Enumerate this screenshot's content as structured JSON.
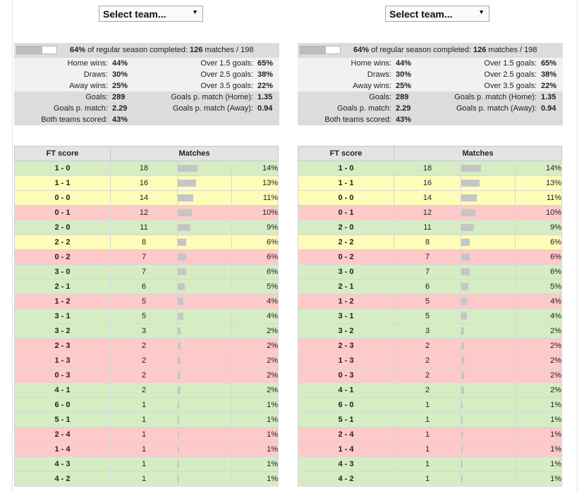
{
  "panels": [
    {
      "select_label": "Select team...",
      "summary": {
        "progress_percent": 64,
        "progress_pct_text": "64%",
        "progress_mid": " of regular season completed: ",
        "matches_played": "126",
        "matches_suffix": " matches / 198",
        "rows": [
          {
            "l_label": "Home wins:",
            "l_val": "44%",
            "r_label": "Over 1.5 goals:",
            "r_val": "65%"
          },
          {
            "l_label": "Draws:",
            "l_val": "30%",
            "r_label": "Over 2.5 goals:",
            "r_val": "38%"
          },
          {
            "l_label": "Away wins:",
            "l_val": "25%",
            "r_label": "Over 3.5 goals:",
            "r_val": "22%"
          },
          {
            "l_label": "Goals:",
            "l_val": "289",
            "r_label": "Goals p. match (Home):",
            "r_val": "1.35"
          },
          {
            "l_label": "Goals p. match:",
            "l_val": "2.29",
            "r_label": "Goals p. match (Away):",
            "r_val": "0.94"
          },
          {
            "l_label": "Both teams scored:",
            "l_val": "43%",
            "r_label": "",
            "r_val": ""
          }
        ]
      },
      "table": {
        "header_score": "FT score",
        "header_matches": "Matches",
        "rows": [
          {
            "score": "1 - 0",
            "count": "18",
            "pct": "14%",
            "share": 14,
            "result": "win"
          },
          {
            "score": "1 - 1",
            "count": "16",
            "pct": "13%",
            "share": 13,
            "result": "draw"
          },
          {
            "score": "0 - 0",
            "count": "14",
            "pct": "11%",
            "share": 11,
            "result": "draw"
          },
          {
            "score": "0 - 1",
            "count": "12",
            "pct": "10%",
            "share": 10,
            "result": "loss"
          },
          {
            "score": "2 - 0",
            "count": "11",
            "pct": "9%",
            "share": 9,
            "result": "win"
          },
          {
            "score": "2 - 2",
            "count": "8",
            "pct": "6%",
            "share": 6,
            "result": "draw"
          },
          {
            "score": "0 - 2",
            "count": "7",
            "pct": "6%",
            "share": 6,
            "result": "loss"
          },
          {
            "score": "3 - 0",
            "count": "7",
            "pct": "6%",
            "share": 6,
            "result": "win"
          },
          {
            "score": "2 - 1",
            "count": "6",
            "pct": "5%",
            "share": 5,
            "result": "win"
          },
          {
            "score": "1 - 2",
            "count": "5",
            "pct": "4%",
            "share": 4,
            "result": "loss"
          },
          {
            "score": "3 - 1",
            "count": "5",
            "pct": "4%",
            "share": 4,
            "result": "win"
          },
          {
            "score": "3 - 2",
            "count": "3",
            "pct": "2%",
            "share": 2,
            "result": "win"
          },
          {
            "score": "2 - 3",
            "count": "2",
            "pct": "2%",
            "share": 2,
            "result": "loss"
          },
          {
            "score": "1 - 3",
            "count": "2",
            "pct": "2%",
            "share": 2,
            "result": "loss"
          },
          {
            "score": "0 - 3",
            "count": "2",
            "pct": "2%",
            "share": 2,
            "result": "loss"
          },
          {
            "score": "4 - 1",
            "count": "2",
            "pct": "2%",
            "share": 2,
            "result": "win"
          },
          {
            "score": "6 - 0",
            "count": "1",
            "pct": "1%",
            "share": 1,
            "result": "win"
          },
          {
            "score": "5 - 1",
            "count": "1",
            "pct": "1%",
            "share": 1,
            "result": "win"
          },
          {
            "score": "2 - 4",
            "count": "1",
            "pct": "1%",
            "share": 1,
            "result": "loss"
          },
          {
            "score": "1 - 4",
            "count": "1",
            "pct": "1%",
            "share": 1,
            "result": "loss"
          },
          {
            "score": "4 - 3",
            "count": "1",
            "pct": "1%",
            "share": 1,
            "result": "win"
          },
          {
            "score": "4 - 2",
            "count": "1",
            "pct": "1%",
            "share": 1,
            "result": "win"
          }
        ]
      }
    },
    {
      "select_label": "Select team...",
      "summary": {
        "progress_percent": 64,
        "progress_pct_text": "64%",
        "progress_mid": " of regular season completed: ",
        "matches_played": "126",
        "matches_suffix": " matches / 198",
        "rows": [
          {
            "l_label": "Home wins:",
            "l_val": "44%",
            "r_label": "Over 1.5 goals:",
            "r_val": "65%"
          },
          {
            "l_label": "Draws:",
            "l_val": "30%",
            "r_label": "Over 2.5 goals:",
            "r_val": "38%"
          },
          {
            "l_label": "Away wins:",
            "l_val": "25%",
            "r_label": "Over 3.5 goals:",
            "r_val": "22%"
          },
          {
            "l_label": "Goals:",
            "l_val": "289",
            "r_label": "Goals p. match (Home):",
            "r_val": "1.35"
          },
          {
            "l_label": "Goals p. match:",
            "l_val": "2.29",
            "r_label": "Goals p. match (Away):",
            "r_val": "0.94"
          },
          {
            "l_label": "Both teams scored:",
            "l_val": "43%",
            "r_label": "",
            "r_val": ""
          }
        ]
      },
      "table": {
        "header_score": "FT score",
        "header_matches": "Matches",
        "rows": [
          {
            "score": "1 - 0",
            "count": "18",
            "pct": "14%",
            "share": 14,
            "result": "win"
          },
          {
            "score": "1 - 1",
            "count": "16",
            "pct": "13%",
            "share": 13,
            "result": "draw"
          },
          {
            "score": "0 - 0",
            "count": "14",
            "pct": "11%",
            "share": 11,
            "result": "draw"
          },
          {
            "score": "0 - 1",
            "count": "12",
            "pct": "10%",
            "share": 10,
            "result": "loss"
          },
          {
            "score": "2 - 0",
            "count": "11",
            "pct": "9%",
            "share": 9,
            "result": "win"
          },
          {
            "score": "2 - 2",
            "count": "8",
            "pct": "6%",
            "share": 6,
            "result": "draw"
          },
          {
            "score": "0 - 2",
            "count": "7",
            "pct": "6%",
            "share": 6,
            "result": "loss"
          },
          {
            "score": "3 - 0",
            "count": "7",
            "pct": "6%",
            "share": 6,
            "result": "win"
          },
          {
            "score": "2 - 1",
            "count": "6",
            "pct": "5%",
            "share": 5,
            "result": "win"
          },
          {
            "score": "1 - 2",
            "count": "5",
            "pct": "4%",
            "share": 4,
            "result": "loss"
          },
          {
            "score": "3 - 1",
            "count": "5",
            "pct": "4%",
            "share": 4,
            "result": "win"
          },
          {
            "score": "3 - 2",
            "count": "3",
            "pct": "2%",
            "share": 2,
            "result": "win"
          },
          {
            "score": "2 - 3",
            "count": "2",
            "pct": "2%",
            "share": 2,
            "result": "loss"
          },
          {
            "score": "1 - 3",
            "count": "2",
            "pct": "2%",
            "share": 2,
            "result": "loss"
          },
          {
            "score": "0 - 3",
            "count": "2",
            "pct": "2%",
            "share": 2,
            "result": "loss"
          },
          {
            "score": "4 - 1",
            "count": "2",
            "pct": "2%",
            "share": 2,
            "result": "win"
          },
          {
            "score": "6 - 0",
            "count": "1",
            "pct": "1%",
            "share": 1,
            "result": "win"
          },
          {
            "score": "5 - 1",
            "count": "1",
            "pct": "1%",
            "share": 1,
            "result": "win"
          },
          {
            "score": "2 - 4",
            "count": "1",
            "pct": "1%",
            "share": 1,
            "result": "loss"
          },
          {
            "score": "1 - 4",
            "count": "1",
            "pct": "1%",
            "share": 1,
            "result": "loss"
          },
          {
            "score": "4 - 3",
            "count": "1",
            "pct": "1%",
            "share": 1,
            "result": "win"
          },
          {
            "score": "4 - 2",
            "count": "1",
            "pct": "1%",
            "share": 1,
            "result": "win"
          }
        ]
      }
    }
  ],
  "colors": {
    "win_row": "#d6edc3",
    "draw_row": "#fefcb9",
    "loss_row": "#fec9c9",
    "summary_dark": "#dcdcdc",
    "summary_light": "#f1f1f1",
    "bar": "#c6c6c6"
  }
}
